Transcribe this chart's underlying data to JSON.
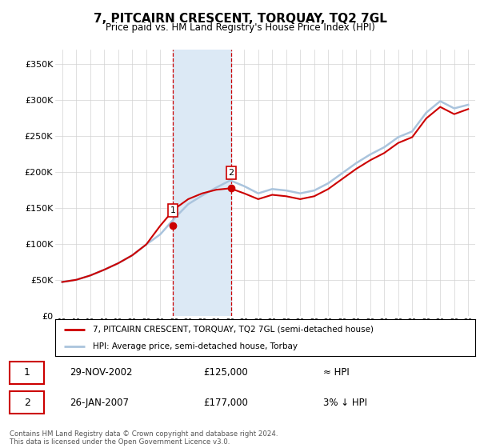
{
  "title": "7, PITCAIRN CRESCENT, TORQUAY, TQ2 7GL",
  "subtitle": "Price paid vs. HM Land Registry's House Price Index (HPI)",
  "ylim": [
    0,
    370000
  ],
  "yticks": [
    0,
    50000,
    100000,
    150000,
    200000,
    250000,
    300000,
    350000
  ],
  "ytick_labels": [
    "£0",
    "£50K",
    "£100K",
    "£150K",
    "£200K",
    "£250K",
    "£300K",
    "£350K"
  ],
  "sales": [
    {
      "date_num": 2002.91,
      "price": 125000,
      "label": "1"
    },
    {
      "date_num": 2007.07,
      "price": 177000,
      "label": "2"
    }
  ],
  "sale1_date": "29-NOV-2002",
  "sale1_price": "£125,000",
  "sale1_vs": "≈ HPI",
  "sale2_date": "26-JAN-2007",
  "sale2_price": "£177,000",
  "sale2_vs": "3% ↓ HPI",
  "legend_line1": "7, PITCAIRN CRESCENT, TORQUAY, TQ2 7GL (semi-detached house)",
  "legend_line2": "HPI: Average price, semi-detached house, Torbay",
  "footer": "Contains HM Land Registry data © Crown copyright and database right 2024.\nThis data is licensed under the Open Government Licence v3.0.",
  "sale_color": "#cc0000",
  "hpi_color": "#aac4dd",
  "shade_color": "#dce9f5",
  "vline_color": "#cc0000",
  "years": [
    1995,
    1996,
    1997,
    1998,
    1999,
    2000,
    2001,
    2002,
    2003,
    2004,
    2005,
    2006,
    2007,
    2008,
    2009,
    2010,
    2011,
    2012,
    2013,
    2014,
    2015,
    2016,
    2017,
    2018,
    2019,
    2020,
    2021,
    2022,
    2023,
    2024
  ],
  "hpi_values": [
    47000,
    50000,
    56000,
    64000,
    73000,
    84000,
    99000,
    113000,
    135000,
    155000,
    167000,
    178000,
    188000,
    180000,
    170000,
    176000,
    174000,
    170000,
    174000,
    184000,
    198000,
    212000,
    224000,
    234000,
    248000,
    256000,
    282000,
    298000,
    288000,
    293000
  ],
  "price_line_values": [
    47000,
    50000,
    56000,
    64000,
    73000,
    84000,
    99000,
    125000,
    148000,
    162000,
    170000,
    175000,
    177000,
    170000,
    162000,
    168000,
    166000,
    162000,
    166000,
    176000,
    190000,
    204000,
    216000,
    226000,
    240000,
    248000,
    274000,
    290000,
    280000,
    287000
  ]
}
